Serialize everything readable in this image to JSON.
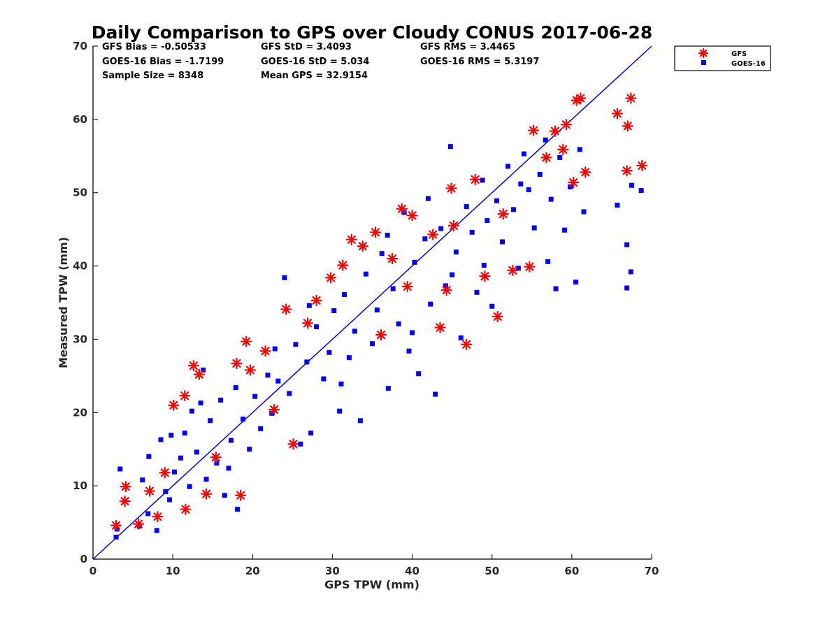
{
  "chart_data": {
    "type": "scatter",
    "title": "Daily Comparison to GPS over Cloudy CONUS 2017-06-28",
    "xlabel": "GPS TPW (mm)",
    "ylabel": "Measured TPW (mm)",
    "xlim": [
      0,
      70
    ],
    "ylim": [
      0,
      70
    ],
    "xticks": [
      "0",
      "10",
      "20",
      "30",
      "40",
      "50",
      "60",
      "70"
    ],
    "yticks": [
      "0",
      "10",
      "20",
      "30",
      "40",
      "50",
      "60",
      "70"
    ],
    "grid": false,
    "legend": {
      "position": "outside-top-right",
      "entries": [
        "GFS",
        "GOES-16"
      ]
    },
    "stats": {
      "gfs_bias": "GFS Bias = -0.50533",
      "goes_bias": "GOES-16 Bias = -1.7199",
      "sample_size": "Sample Size = 8348",
      "gfs_std": "GFS StD = 3.4093",
      "goes_std": "GOES-16 StD = 5.034",
      "mean_gps": "Mean GPS = 32.9154",
      "gfs_rms": "GFS RMS = 3.4465",
      "goes_rms": "GOES-16 RMS = 5.3197"
    },
    "reference_line": {
      "name": "1:1 line",
      "from": [
        0,
        0
      ],
      "to": [
        70,
        70
      ],
      "color": "#0000ff"
    },
    "series": [
      {
        "name": "GOES-16",
        "marker": "square",
        "color": "#0000ff",
        "points": [
          [
            2.9,
            3.0
          ],
          [
            3.0,
            4.1
          ],
          [
            3.4,
            12.3
          ],
          [
            5.8,
            4.5
          ],
          [
            6.9,
            6.2
          ],
          [
            7.0,
            14.0
          ],
          [
            8.0,
            3.9
          ],
          [
            8.5,
            16.3
          ],
          [
            9.1,
            9.2
          ],
          [
            9.8,
            16.9
          ],
          [
            10.2,
            11.9
          ],
          [
            11.0,
            13.8
          ],
          [
            11.5,
            17.2
          ],
          [
            12.1,
            9.9
          ],
          [
            12.4,
            20.2
          ],
          [
            13.0,
            14.6
          ],
          [
            13.8,
            25.8
          ],
          [
            14.2,
            10.9
          ],
          [
            14.7,
            18.9
          ],
          [
            15.5,
            13.1
          ],
          [
            16.0,
            21.7
          ],
          [
            16.5,
            8.7
          ],
          [
            17.3,
            16.2
          ],
          [
            17.9,
            23.4
          ],
          [
            18.1,
            6.8
          ],
          [
            18.8,
            19.1
          ],
          [
            19.6,
            15.0
          ],
          [
            20.3,
            22.2
          ],
          [
            21.0,
            17.8
          ],
          [
            21.9,
            25.1
          ],
          [
            22.4,
            19.9
          ],
          [
            23.2,
            24.3
          ],
          [
            24.0,
            38.4
          ],
          [
            24.6,
            22.6
          ],
          [
            25.4,
            29.3
          ],
          [
            26.0,
            15.7
          ],
          [
            26.8,
            26.9
          ],
          [
            27.3,
            17.2
          ],
          [
            28.0,
            31.7
          ],
          [
            28.9,
            24.6
          ],
          [
            29.6,
            28.2
          ],
          [
            30.2,
            33.9
          ],
          [
            30.9,
            20.2
          ],
          [
            31.5,
            36.1
          ],
          [
            32.1,
            27.5
          ],
          [
            32.8,
            31.1
          ],
          [
            33.5,
            18.9
          ],
          [
            34.2,
            38.9
          ],
          [
            35.0,
            29.4
          ],
          [
            35.6,
            34.0
          ],
          [
            36.2,
            41.7
          ],
          [
            37.0,
            23.3
          ],
          [
            37.6,
            36.9
          ],
          [
            38.3,
            32.1
          ],
          [
            39.0,
            47.3
          ],
          [
            39.6,
            28.4
          ],
          [
            40.3,
            40.5
          ],
          [
            40.8,
            25.3
          ],
          [
            41.6,
            43.7
          ],
          [
            42.3,
            34.8
          ],
          [
            42.9,
            22.5
          ],
          [
            43.6,
            45.1
          ],
          [
            44.2,
            37.3
          ],
          [
            44.8,
            56.3
          ],
          [
            45.5,
            41.9
          ],
          [
            46.1,
            30.2
          ],
          [
            46.8,
            48.1
          ],
          [
            47.5,
            44.6
          ],
          [
            48.1,
            36.4
          ],
          [
            48.8,
            51.7
          ],
          [
            49.4,
            46.2
          ],
          [
            50.0,
            34.5
          ],
          [
            50.6,
            48.9
          ],
          [
            51.3,
            43.3
          ],
          [
            52.0,
            53.6
          ],
          [
            52.7,
            47.7
          ],
          [
            53.3,
            39.7
          ],
          [
            54.0,
            55.3
          ],
          [
            54.6,
            50.4
          ],
          [
            55.3,
            45.2
          ],
          [
            56.0,
            52.5
          ],
          [
            56.7,
            57.2
          ],
          [
            57.4,
            49.1
          ],
          [
            58.0,
            36.9
          ],
          [
            58.5,
            54.8
          ],
          [
            59.1,
            44.9
          ],
          [
            59.8,
            50.8
          ],
          [
            60.5,
            37.8
          ],
          [
            61.0,
            55.9
          ],
          [
            61.5,
            47.4
          ],
          [
            65.7,
            48.3
          ],
          [
            66.9,
            42.9
          ],
          [
            66.9,
            37.0
          ],
          [
            67.4,
            39.2
          ],
          [
            67.5,
            51.0
          ],
          [
            68.7,
            50.3
          ],
          [
            6.2,
            10.8
          ],
          [
            9.6,
            8.1
          ],
          [
            13.5,
            21.3
          ],
          [
            17.0,
            12.4
          ],
          [
            22.8,
            28.7
          ],
          [
            27.1,
            34.6
          ],
          [
            31.1,
            23.9
          ],
          [
            36.9,
            44.2
          ],
          [
            40.0,
            30.9
          ],
          [
            45.0,
            38.8
          ],
          [
            49.0,
            40.1
          ],
          [
            53.6,
            51.2
          ],
          [
            57.0,
            40.6
          ],
          [
            42.0,
            49.2
          ]
        ]
      },
      {
        "name": "GFS",
        "marker": "asterisk",
        "color": "#ff0000",
        "points": [
          [
            2.9,
            4.6
          ],
          [
            4.1,
            9.9
          ],
          [
            4.0,
            7.9
          ],
          [
            5.7,
            4.8
          ],
          [
            7.1,
            9.3
          ],
          [
            8.1,
            5.8
          ],
          [
            10.1,
            21.0
          ],
          [
            11.5,
            22.3
          ],
          [
            11.6,
            6.8
          ],
          [
            12.6,
            26.4
          ],
          [
            13.3,
            25.2
          ],
          [
            14.2,
            8.9
          ],
          [
            18.0,
            26.7
          ],
          [
            18.5,
            8.7
          ],
          [
            19.2,
            29.7
          ],
          [
            19.7,
            25.8
          ],
          [
            21.6,
            28.4
          ],
          [
            24.2,
            34.1
          ],
          [
            25.1,
            15.7
          ],
          [
            28.0,
            35.3
          ],
          [
            29.8,
            38.4
          ],
          [
            32.4,
            43.6
          ],
          [
            33.8,
            42.7
          ],
          [
            35.4,
            44.6
          ],
          [
            37.5,
            41.0
          ],
          [
            38.7,
            47.8
          ],
          [
            40.0,
            46.9
          ],
          [
            42.6,
            44.3
          ],
          [
            43.5,
            31.6
          ],
          [
            44.9,
            50.6
          ],
          [
            46.8,
            29.3
          ],
          [
            47.9,
            51.8
          ],
          [
            49.1,
            38.6
          ],
          [
            50.7,
            33.1
          ],
          [
            52.6,
            39.4
          ],
          [
            54.7,
            39.9
          ],
          [
            55.2,
            58.5
          ],
          [
            56.8,
            54.8
          ],
          [
            57.9,
            58.4
          ],
          [
            58.9,
            55.9
          ],
          [
            59.3,
            59.3
          ],
          [
            60.2,
            51.4
          ],
          [
            60.6,
            62.6
          ],
          [
            61.1,
            62.9
          ],
          [
            61.7,
            52.8
          ],
          [
            65.7,
            60.8
          ],
          [
            67.0,
            59.1
          ],
          [
            66.9,
            53.0
          ],
          [
            67.4,
            62.9
          ],
          [
            68.8,
            53.7
          ],
          [
            26.9,
            32.2
          ],
          [
            36.1,
            30.6
          ],
          [
            45.2,
            45.5
          ],
          [
            15.4,
            13.9
          ],
          [
            9.0,
            11.8
          ],
          [
            22.7,
            20.4
          ],
          [
            31.3,
            40.1
          ],
          [
            39.4,
            37.2
          ],
          [
            51.4,
            47.1
          ],
          [
            44.3,
            36.7
          ]
        ]
      }
    ]
  }
}
